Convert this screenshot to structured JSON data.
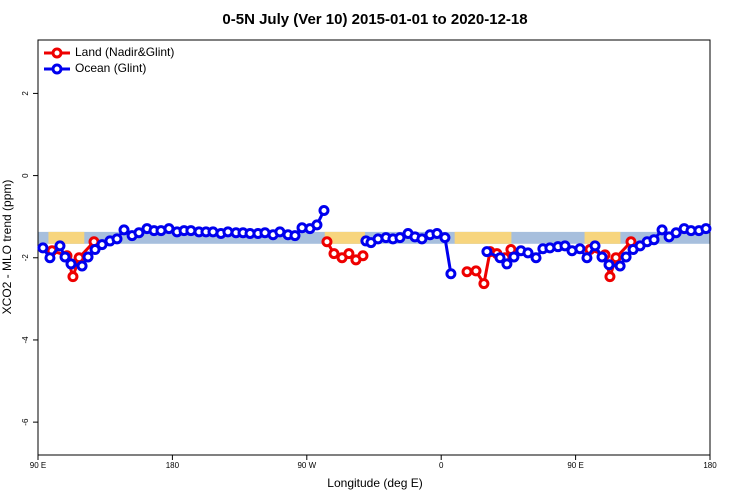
{
  "chart_data": {
    "type": "line",
    "title": "0-5N July (Ver 10)   2015-01-01 to 2020-12-18",
    "x_label": "Longitude (deg E)",
    "y_label": "XCO2 - MLO trend (ppm)",
    "xlim": [
      90,
      540
    ],
    "xticks": [
      {
        "value": 90,
        "label": "90 E"
      },
      {
        "value": 180,
        "label": "180"
      },
      {
        "value": 270,
        "label": "90 W"
      },
      {
        "value": 360,
        "label": "0"
      },
      {
        "value": 450,
        "label": "90 E"
      },
      {
        "value": 540,
        "label": "180"
      }
    ],
    "ylim": [
      -6.8,
      3.3
    ],
    "yticks": [
      -6,
      -4,
      -2,
      0,
      2
    ],
    "legend": "top-left",
    "band": {
      "ylim": [
        -1.66,
        -1.37
      ],
      "color": "#a7bfdd",
      "land_color": "#f7d57e",
      "land_spans": [
        [
          97,
          121
        ],
        [
          282,
          309
        ],
        [
          369,
          407
        ],
        [
          456,
          480
        ]
      ]
    },
    "series": [
      {
        "name": "Land (Nadir&Glint)",
        "color": "#ee0000",
        "x": [
          99.4,
          109.4,
          113.4,
          117.5,
          127.5,
          200,
          283.5,
          288.2,
          293.6,
          298.2,
          302.9,
          307.6,
          340,
          377.3,
          383.3,
          388.6,
          392.7,
          397.3,
          402.7,
          406.7,
          430,
          459.6,
          469.7,
          473.0,
          477.0,
          487.1
        ],
        "values": [
          -1.83,
          -1.95,
          -2.46,
          -2.0,
          -1.61,
          null,
          -1.61,
          -1.9,
          -2.0,
          -1.9,
          -2.05,
          -1.95,
          null,
          -2.34,
          -2.32,
          -2.63,
          -1.85,
          -1.9,
          -2.0,
          -1.8,
          null,
          -1.8,
          -1.93,
          -2.46,
          -2.0,
          -1.61
        ]
      },
      {
        "name": "Ocean (Glint)",
        "color": "#0000ee",
        "x": [
          93.3,
          98.0,
          104.7,
          108.1,
          112.1,
          119.5,
          123.5,
          128.2,
          132.9,
          138.2,
          142.9,
          147.6,
          153.0,
          157.6,
          163.0,
          167.7,
          172.4,
          177.7,
          183.1,
          187.8,
          192.4,
          197.8,
          202.5,
          207.2,
          212.5,
          217.2,
          222.6,
          227.3,
          232.0,
          237.3,
          242.0,
          247.4,
          252.0,
          257.4,
          262.1,
          266.8,
          272.1,
          276.8,
          281.5,
          300,
          309.6,
          313.0,
          317.7,
          323.0,
          327.7,
          332.4,
          337.8,
          342.4,
          347.1,
          352.5,
          357.2,
          362.5,
          366.5,
          380,
          390.6,
          399.4,
          404.0,
          408.7,
          413.4,
          418.1,
          423.5,
          428.1,
          432.8,
          438.2,
          442.9,
          447.6,
          452.9,
          457.6,
          463.0,
          467.7,
          472.4,
          479.8,
          483.8,
          488.5,
          493.2,
          497.9,
          502.5,
          507.9,
          512.6,
          517.3,
          522.7,
          527.3,
          532.6,
          537.3
        ],
        "values": [
          -1.76,
          -2.0,
          -1.71,
          -1.98,
          -2.15,
          -2.2,
          -1.98,
          -1.8,
          -1.68,
          -1.59,
          -1.54,
          -1.32,
          -1.46,
          -1.39,
          -1.29,
          -1.34,
          -1.34,
          -1.29,
          -1.37,
          -1.34,
          -1.34,
          -1.37,
          -1.37,
          -1.37,
          -1.41,
          -1.37,
          -1.39,
          -1.39,
          -1.41,
          -1.41,
          -1.39,
          -1.44,
          -1.37,
          -1.44,
          -1.46,
          -1.27,
          -1.29,
          -1.2,
          -0.85,
          null,
          -1.59,
          -1.63,
          -1.54,
          -1.51,
          -1.54,
          -1.51,
          -1.41,
          -1.49,
          -1.54,
          -1.44,
          -1.41,
          -1.51,
          -2.39,
          null,
          -1.85,
          -2.0,
          -2.15,
          -1.98,
          -1.83,
          -1.88,
          -2.0,
          -1.78,
          -1.76,
          -1.73,
          -1.71,
          -1.83,
          -1.78,
          -2.0,
          -1.71,
          -1.98,
          -2.17,
          -2.2,
          -1.98,
          -1.8,
          -1.71,
          -1.61,
          -1.56,
          -1.32,
          -1.49,
          -1.39,
          -1.29,
          -1.34,
          -1.34,
          -1.29
        ]
      }
    ]
  }
}
